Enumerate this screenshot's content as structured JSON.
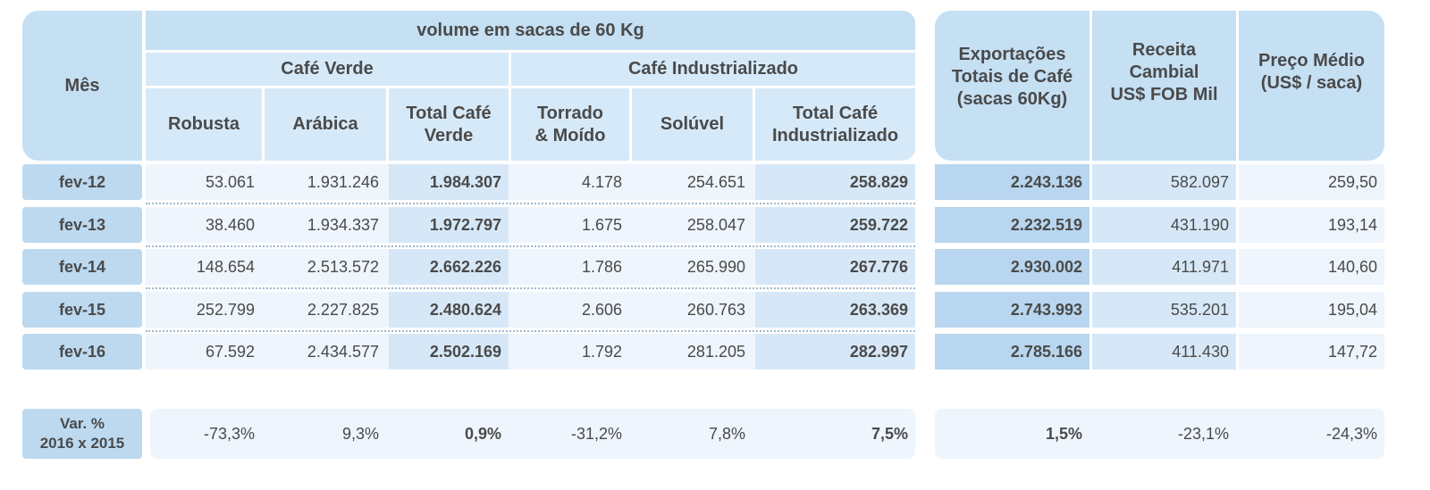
{
  "header": {
    "mes": "Mês",
    "volume": "volume em sacas de 60 Kg",
    "cafe_verde": "Café Verde",
    "cafe_industrializado": "Café Industrializado",
    "robusta": "Robusta",
    "arabica": "Arábica",
    "total_verde_1": "Total Café",
    "total_verde_2": "Verde",
    "torrado_1": "Torrado",
    "torrado_2": "& Moído",
    "soluvel": "Solúvel",
    "total_ind_1": "Total Café",
    "total_ind_2": "Industrializado",
    "export_1": "Exportações",
    "export_2": "Totais de Café",
    "export_3": "(sacas 60Kg)",
    "receita_1": "Receita",
    "receita_2": "Cambial",
    "receita_3": "US$ FOB Mil",
    "preco_1": "Preço Médio",
    "preco_2": "(US$ / saca)"
  },
  "rows": [
    {
      "mes": "fev-12",
      "robusta": "53.061",
      "arabica": "1.931.246",
      "total_verde": "1.984.307",
      "torrado": "4.178",
      "soluvel": "254.651",
      "total_ind": "258.829",
      "export": "2.243.136",
      "receita": "582.097",
      "preco": "259,50"
    },
    {
      "mes": "fev-13",
      "robusta": "38.460",
      "arabica": "1.934.337",
      "total_verde": "1.972.797",
      "torrado": "1.675",
      "soluvel": "258.047",
      "total_ind": "259.722",
      "export": "2.232.519",
      "receita": "431.190",
      "preco": "193,14"
    },
    {
      "mes": "fev-14",
      "robusta": "148.654",
      "arabica": "2.513.572",
      "total_verde": "2.662.226",
      "torrado": "1.786",
      "soluvel": "265.990",
      "total_ind": "267.776",
      "export": "2.930.002",
      "receita": "411.971",
      "preco": "140,60"
    },
    {
      "mes": "fev-15",
      "robusta": "252.799",
      "arabica": "2.227.825",
      "total_verde": "2.480.624",
      "torrado": "2.606",
      "soluvel": "260.763",
      "total_ind": "263.369",
      "export": "2.743.993",
      "receita": "535.201",
      "preco": "195,04"
    },
    {
      "mes": "fev-16",
      "robusta": "67.592",
      "arabica": "2.434.577",
      "total_verde": "2.502.169",
      "torrado": "1.792",
      "soluvel": "281.205",
      "total_ind": "282.997",
      "export": "2.785.166",
      "receita": "411.430",
      "preco": "147,72"
    }
  ],
  "var": {
    "label_1": "Var. %",
    "label_2": "2016 x 2015",
    "robusta": "-73,3%",
    "arabica": "9,3%",
    "total_verde": "0,9%",
    "torrado": "-31,2%",
    "soluvel": "7,8%",
    "total_ind": "7,5%",
    "export": "1,5%",
    "receita": "-23,1%",
    "preco": "-24,3%"
  }
}
